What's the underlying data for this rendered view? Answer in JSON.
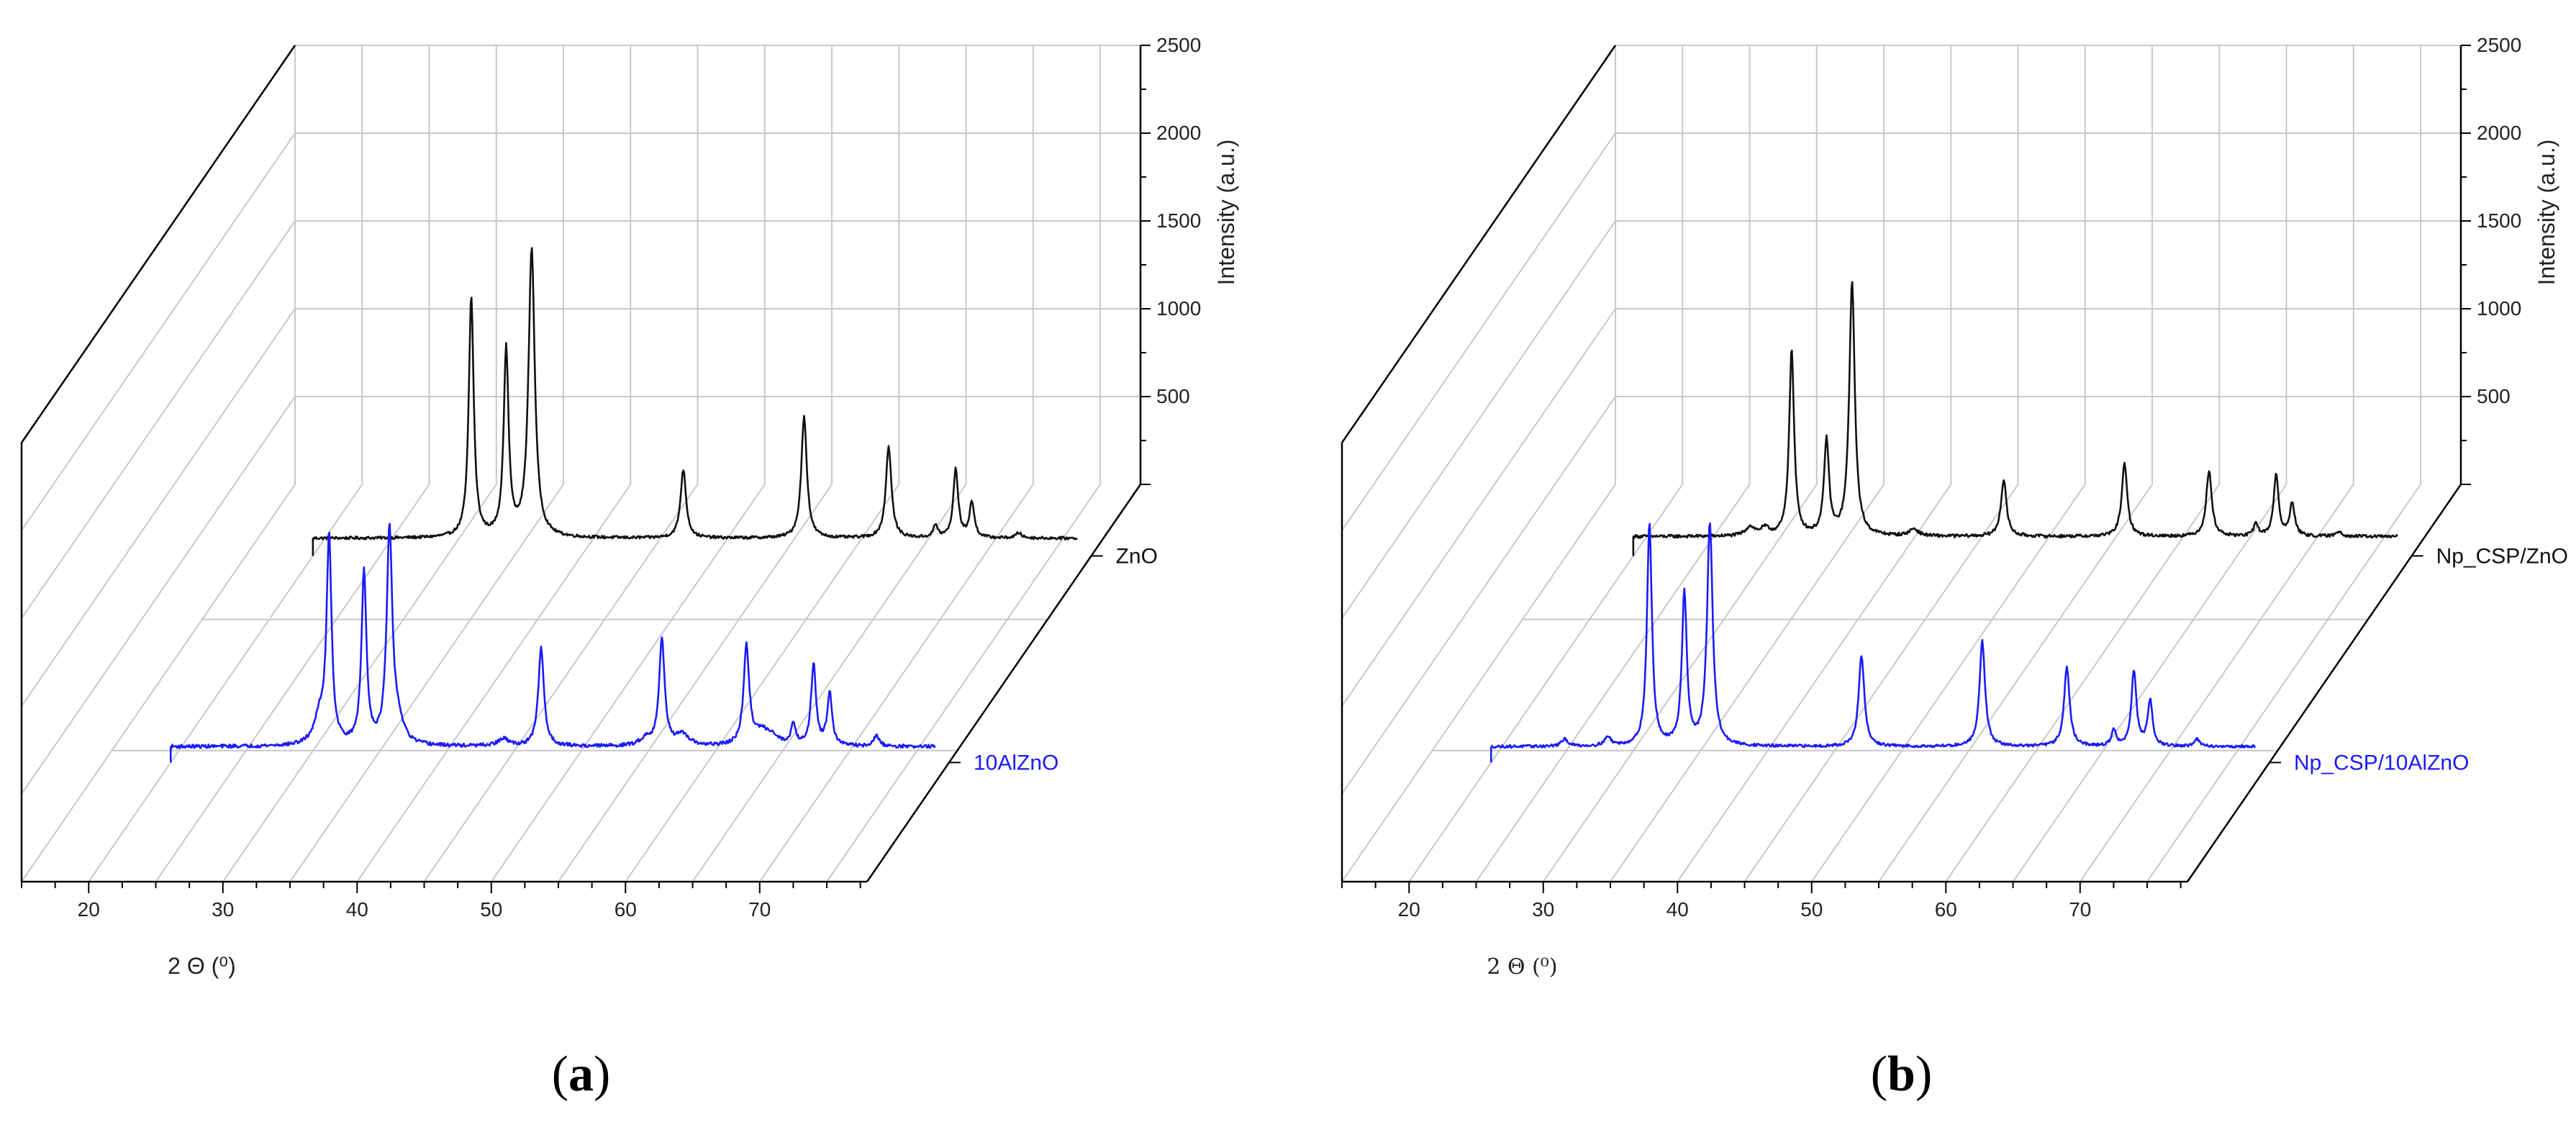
{
  "chart_data": [
    {
      "type": "line",
      "panel": "(a)",
      "panel_letter": "a",
      "xlabel": "2 Θ (⁰)",
      "ylabel": "Intensity (a.u.)",
      "xlim": [
        15,
        78
      ],
      "ylim": [
        0,
        2500
      ],
      "x_ticks": [
        20,
        30,
        40,
        50,
        60,
        70
      ],
      "y_ticks": [
        500,
        1000,
        1500,
        2000,
        2500
      ],
      "grid": true,
      "series": [
        {
          "name": "10AlZnO",
          "color": "#1a1aff",
          "depth": "front",
          "x_start": 20,
          "x_end": 77,
          "baseline": 90,
          "noise": 10,
          "peaks": [
            {
              "x": 31.8,
              "y": 1170,
              "w": 0.22
            },
            {
              "x": 31.1,
              "y": 150,
              "w": 0.5
            },
            {
              "x": 34.4,
              "y": 980,
              "w": 0.22
            },
            {
              "x": 36.3,
              "y": 1200,
              "w": 0.25
            },
            {
              "x": 36.9,
              "y": 120,
              "w": 0.5
            },
            {
              "x": 47.6,
              "y": 560,
              "w": 0.25
            },
            {
              "x": 44.8,
              "y": 40,
              "w": 0.5
            },
            {
              "x": 56.6,
              "y": 600,
              "w": 0.25
            },
            {
              "x": 55.4,
              "y": 40,
              "w": 0.5
            },
            {
              "x": 58.1,
              "y": 60,
              "w": 0.6
            },
            {
              "x": 62.9,
              "y": 560,
              "w": 0.25
            },
            {
              "x": 64.0,
              "y": 70,
              "w": 0.6
            },
            {
              "x": 64.8,
              "y": 50,
              "w": 0.6
            },
            {
              "x": 66.4,
              "y": 120,
              "w": 0.2
            },
            {
              "x": 67.9,
              "y": 460,
              "w": 0.22
            },
            {
              "x": 69.1,
              "y": 300,
              "w": 0.22
            },
            {
              "x": 72.6,
              "y": 60,
              "w": 0.25
            }
          ]
        },
        {
          "name": "ZnO",
          "color": "#111111",
          "depth": "back",
          "x_start": 20,
          "x_end": 77,
          "baseline": 100,
          "noise": 8,
          "peaks": [
            {
              "x": 31.8,
              "y": 1370,
              "w": 0.22
            },
            {
              "x": 34.4,
              "y": 1060,
              "w": 0.22
            },
            {
              "x": 36.3,
              "y": 1640,
              "w": 0.28
            },
            {
              "x": 47.6,
              "y": 390,
              "w": 0.25
            },
            {
              "x": 56.6,
              "y": 690,
              "w": 0.25
            },
            {
              "x": 62.9,
              "y": 520,
              "w": 0.25
            },
            {
              "x": 66.4,
              "y": 70,
              "w": 0.2
            },
            {
              "x": 67.9,
              "y": 390,
              "w": 0.22
            },
            {
              "x": 69.1,
              "y": 200,
              "w": 0.22
            },
            {
              "x": 72.6,
              "y": 30,
              "w": 0.25
            }
          ]
        }
      ]
    },
    {
      "type": "line",
      "panel": "(b)",
      "panel_letter": "b",
      "xlabel": "2 Θ (⁰)",
      "ylabel": "Intensity (a.u.)",
      "xlim": [
        15,
        78
      ],
      "ylim": [
        0,
        2500
      ],
      "x_ticks": [
        20,
        30,
        40,
        50,
        60,
        70
      ],
      "y_ticks": [
        500,
        1000,
        1500,
        2000,
        2500
      ],
      "grid": true,
      "series": [
        {
          "name": "Np_CSP/10AlZnO",
          "color": "#1a1aff",
          "depth": "front",
          "x_start": 20,
          "x_end": 77,
          "baseline": 90,
          "noise": 8,
          "peaks": [
            {
              "x": 25.5,
              "y": 40,
              "w": 0.3
            },
            {
              "x": 28.7,
              "y": 50,
              "w": 0.3
            },
            {
              "x": 31.8,
              "y": 1270,
              "w": 0.22
            },
            {
              "x": 34.4,
              "y": 870,
              "w": 0.22
            },
            {
              "x": 36.3,
              "y": 1270,
              "w": 0.25
            },
            {
              "x": 47.6,
              "y": 520,
              "w": 0.25
            },
            {
              "x": 56.6,
              "y": 600,
              "w": 0.25
            },
            {
              "x": 62.9,
              "y": 450,
              "w": 0.25
            },
            {
              "x": 66.4,
              "y": 90,
              "w": 0.2
            },
            {
              "x": 67.9,
              "y": 430,
              "w": 0.22
            },
            {
              "x": 69.1,
              "y": 260,
              "w": 0.22
            },
            {
              "x": 72.6,
              "y": 40,
              "w": 0.25
            }
          ]
        },
        {
          "name": "Np_CSP/ZnO",
          "color": "#111111",
          "depth": "back",
          "x_start": 20,
          "x_end": 77,
          "baseline": 110,
          "noise": 9,
          "peaks": [
            {
              "x": 28.7,
              "y": 50,
              "w": 0.4
            },
            {
              "x": 29.8,
              "y": 40,
              "w": 0.4
            },
            {
              "x": 31.8,
              "y": 1060,
              "w": 0.22
            },
            {
              "x": 34.4,
              "y": 540,
              "w": 0.22
            },
            {
              "x": 36.3,
              "y": 1440,
              "w": 0.25
            },
            {
              "x": 40.9,
              "y": 40,
              "w": 0.4
            },
            {
              "x": 47.6,
              "y": 320,
              "w": 0.25
            },
            {
              "x": 56.6,
              "y": 410,
              "w": 0.25
            },
            {
              "x": 62.9,
              "y": 370,
              "w": 0.25
            },
            {
              "x": 66.4,
              "y": 70,
              "w": 0.2
            },
            {
              "x": 67.9,
              "y": 350,
              "w": 0.22
            },
            {
              "x": 69.1,
              "y": 190,
              "w": 0.22
            },
            {
              "x": 72.6,
              "y": 30,
              "w": 0.25
            }
          ]
        }
      ]
    }
  ]
}
